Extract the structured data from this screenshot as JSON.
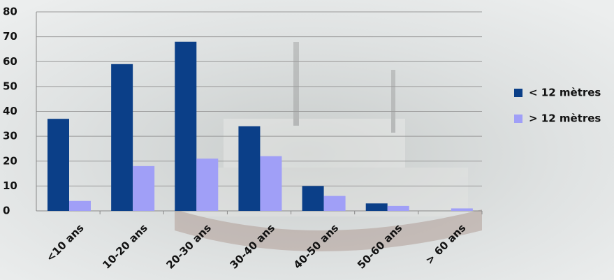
{
  "chart_data": {
    "type": "bar",
    "categories": [
      "<10 ans",
      "10-20 ans",
      "20-30 ans",
      "30-40 ans",
      "40-50 ans",
      "50-60 ans",
      "> 60 ans"
    ],
    "series": [
      {
        "name": "< 12 mètres",
        "color": "#0b3f88",
        "values": [
          37,
          59,
          68,
          34,
          10,
          3,
          0
        ]
      },
      {
        "name": "> 12 mètres",
        "color": "#a09ff7",
        "values": [
          4,
          18,
          21,
          22,
          6,
          2,
          1
        ]
      }
    ],
    "ylim": [
      0,
      80
    ],
    "yticks": [
      0,
      10,
      20,
      30,
      40,
      50,
      60,
      70,
      80
    ],
    "grid": true,
    "legend": "right"
  }
}
